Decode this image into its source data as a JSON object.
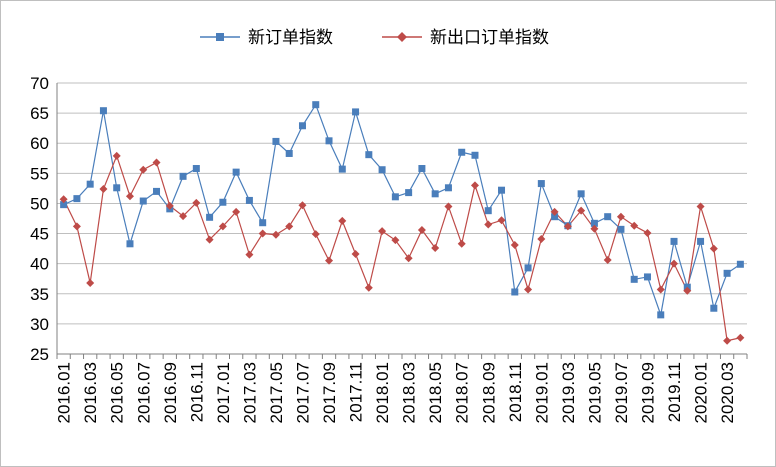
{
  "chart_data": {
    "type": "line",
    "title": "",
    "xlabel": "",
    "ylabel": "",
    "ylim": [
      25,
      70
    ],
    "yticks": [
      "25",
      "30",
      "35",
      "40",
      "45",
      "50",
      "55",
      "60",
      "65",
      "70"
    ],
    "grid": true,
    "legend_position": "top",
    "x": [
      "2016.01",
      "2016.02",
      "2016.03",
      "2016.04",
      "2016.05",
      "2016.06",
      "2016.07",
      "2016.08",
      "2016.09",
      "2016.10",
      "2016.11",
      "2016.12",
      "2017.01",
      "2017.02",
      "2017.03",
      "2017.04",
      "2017.05",
      "2017.06",
      "2017.07",
      "2017.08",
      "2017.09",
      "2017.10",
      "2017.11",
      "2017.12",
      "2018.01",
      "2018.02",
      "2018.03",
      "2018.04",
      "2018.05",
      "2018.06",
      "2018.07",
      "2018.08",
      "2018.09",
      "2018.10",
      "2018.11",
      "2018.12",
      "2019.01",
      "2019.02",
      "2019.03",
      "2019.04",
      "2019.05",
      "2019.06",
      "2019.07",
      "2019.08",
      "2019.09",
      "2019.10",
      "2019.11",
      "2019.12",
      "2020.01",
      "2020.02",
      "2020.03",
      "2020.04"
    ],
    "tick_labels": [
      "2016.01",
      "2016.03",
      "2016.05",
      "2016.07",
      "2016.09",
      "2016.11",
      "2017.01",
      "2017.03",
      "2017.05",
      "2017.07",
      "2017.09",
      "2017.11",
      "2018.01",
      "2018.03",
      "2018.05",
      "2018.07",
      "2018.09",
      "2018.11",
      "2019.01",
      "2019.03",
      "2019.05",
      "2019.07",
      "2019.09",
      "2019.11",
      "2020.01",
      "2020.03"
    ],
    "series": [
      {
        "name": "新订单指数",
        "color": "#4a7ebb",
        "marker": "square",
        "values": [
          49.8,
          50.8,
          53.2,
          65.4,
          52.6,
          43.3,
          50.4,
          52.0,
          49.1,
          54.5,
          55.8,
          47.7,
          50.2,
          55.2,
          50.5,
          46.8,
          60.3,
          58.3,
          62.9,
          66.4,
          60.4,
          55.7,
          65.2,
          58.1,
          55.6,
          51.1,
          51.8,
          55.8,
          51.6,
          52.6,
          58.5,
          58.0,
          48.8,
          52.2,
          35.3,
          39.3,
          53.3,
          47.8,
          46.3,
          51.6,
          46.7,
          47.8,
          45.7,
          37.4,
          37.8,
          31.5,
          43.7,
          36.1,
          43.7,
          32.6,
          38.4,
          39.9
        ]
      },
      {
        "name": "新出口订单指数",
        "color": "#be4b48",
        "marker": "diamond",
        "values": [
          50.7,
          46.2,
          36.8,
          52.4,
          57.9,
          51.2,
          55.6,
          56.8,
          49.6,
          47.9,
          50.1,
          44.0,
          46.2,
          48.6,
          41.5,
          45.0,
          44.8,
          46.2,
          49.7,
          44.9,
          40.5,
          47.1,
          41.6,
          36.0,
          45.4,
          43.9,
          40.9,
          45.6,
          42.6,
          49.5,
          43.3,
          53.0,
          46.5,
          47.2,
          43.1,
          35.7,
          44.1,
          48.6,
          46.2,
          48.8,
          45.8,
          40.6,
          47.8,
          46.3,
          45.1,
          35.7,
          40.0,
          35.5,
          49.5,
          42.5,
          27.2,
          27.7
        ]
      }
    ]
  }
}
